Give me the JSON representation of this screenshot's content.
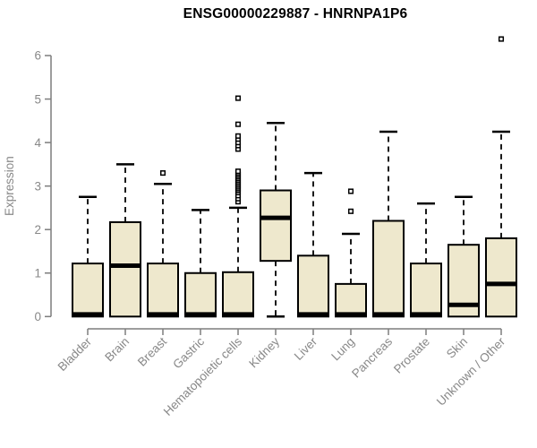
{
  "chart_data": {
    "type": "boxplot",
    "title": "ENSG00000229887 - HNRNPA1P6",
    "xlabel": "",
    "ylabel": "Expression",
    "ylim": [
      0,
      6.4
    ],
    "yticks": [
      0,
      1,
      2,
      3,
      4,
      5,
      6
    ],
    "grid": false,
    "legend": "none",
    "categories": [
      "Bladder",
      "Brain",
      "Breast",
      "Gastric",
      "Hematopoietic cells",
      "Kidney",
      "Liver",
      "Lung",
      "Pancreas",
      "Prostate",
      "Skin",
      "Unknown / Other"
    ],
    "series": [
      {
        "name": "Bladder",
        "low": 0,
        "q1": 0,
        "median": 0.05,
        "q3": 1.22,
        "high": 2.75,
        "outliers": []
      },
      {
        "name": "Brain",
        "low": 0,
        "q1": 0,
        "median": 1.17,
        "q3": 2.17,
        "high": 3.5,
        "outliers": []
      },
      {
        "name": "Breast",
        "low": 0,
        "q1": 0,
        "median": 0.05,
        "q3": 1.22,
        "high": 3.05,
        "outliers": [
          3.3
        ]
      },
      {
        "name": "Gastric",
        "low": 0,
        "q1": 0,
        "median": 0.05,
        "q3": 1.0,
        "high": 2.45,
        "outliers": []
      },
      {
        "name": "Hematopoietic cells",
        "low": 0,
        "q1": 0,
        "median": 0.05,
        "q3": 1.02,
        "high": 2.5,
        "outliers": [
          2.64,
          2.71,
          2.78,
          2.85,
          2.9,
          2.94,
          2.98,
          3.02,
          3.06,
          3.1,
          3.14,
          3.18,
          3.22,
          3.26,
          3.3,
          3.34,
          3.85,
          3.93,
          4.0,
          4.08,
          4.15,
          4.42,
          5.02
        ]
      },
      {
        "name": "Kidney",
        "low": 0,
        "q1": 1.28,
        "median": 2.27,
        "q3": 2.9,
        "high": 4.45,
        "outliers": []
      },
      {
        "name": "Liver",
        "low": 0,
        "q1": 0,
        "median": 0.05,
        "q3": 1.4,
        "high": 3.3,
        "outliers": []
      },
      {
        "name": "Lung",
        "low": 0,
        "q1": 0,
        "median": 0.05,
        "q3": 0.75,
        "high": 1.9,
        "outliers": [
          2.42,
          2.88
        ]
      },
      {
        "name": "Pancreas",
        "low": 0,
        "q1": 0,
        "median": 0.05,
        "q3": 2.2,
        "high": 4.25,
        "outliers": []
      },
      {
        "name": "Prostate",
        "low": 0,
        "q1": 0,
        "median": 0.05,
        "q3": 1.22,
        "high": 2.6,
        "outliers": []
      },
      {
        "name": "Skin",
        "low": 0,
        "q1": 0,
        "median": 0.27,
        "q3": 1.65,
        "high": 2.75,
        "outliers": []
      },
      {
        "name": "Unknown / Other",
        "low": 0,
        "q1": 0,
        "median": 0.75,
        "q3": 1.8,
        "high": 4.25,
        "outliers": [
          6.38
        ]
      }
    ],
    "colors": {
      "box_fill": "#EEE8CD",
      "box_border": "#000000",
      "median": "#000000",
      "whisker": "#000000",
      "outlier": "#000000",
      "axis_line": "#7d7d7d",
      "tick_label": "#888888",
      "axis_title": "#888888",
      "title": "#000000",
      "background": "#ffffff"
    }
  }
}
